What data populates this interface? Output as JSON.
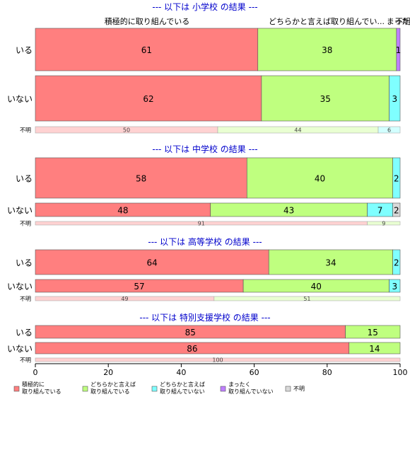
{
  "top_labels": [
    "積極的に取り組んでいる",
    "どちらかと言えば取り組んでい...",
    "まった",
    "不明"
  ],
  "colors": {
    "積極的に取り組んでいる": "#ff7f7f",
    "どちらかと言えば取り組んでいる": "#bfff7f",
    "どちらかと言えば取り組んでいない": "#7fffff",
    "まったく取り組んでいない": "#bf7fff",
    "不明": "#d9d9d9",
    "title": "#0000cc"
  },
  "chart_data": {
    "type": "bar",
    "orientation": "horizontal",
    "stacked": true,
    "xlim": [
      0,
      100
    ],
    "x_ticks": [
      "0",
      "20",
      "40",
      "60",
      "80",
      "100"
    ],
    "legend": {
      "placement": "bottom",
      "entries": [
        {
          "key": "積極的に取り組んでいる",
          "lines": [
            "積極的に",
            "取り組んでいる"
          ]
        },
        {
          "key": "どちらかと言えば取り組んでいる",
          "lines": [
            "どちらかと言えば",
            "取り組んでいる"
          ]
        },
        {
          "key": "どちらかと言えば取り組んでいない",
          "lines": [
            "どちらかと言えば",
            "取り組んでいない"
          ]
        },
        {
          "key": "まったく取り組んでいない",
          "lines": [
            "まったく",
            "取り組んでいない"
          ]
        },
        {
          "key": "不明",
          "lines": [
            "不明"
          ]
        }
      ]
    },
    "groups": [
      {
        "title": "--- 以下は 小学校 の結果 ---",
        "rows": [
          {
            "label": "いる",
            "values": [
              61,
              38,
              0,
              1,
              0
            ],
            "value_labels": [
              "61",
              "38",
              "",
              "1",
              ""
            ]
          },
          {
            "label": "いない",
            "values": [
              62,
              35,
              3,
              0,
              0
            ],
            "value_labels": [
              "62",
              "35",
              "3",
              "",
              ""
            ]
          },
          {
            "label": "不明",
            "values": [
              50,
              44,
              6,
              0,
              0
            ],
            "value_labels": [
              "50",
              "44",
              "6",
              "",
              ""
            ]
          }
        ]
      },
      {
        "title": "--- 以下は 中学校 の結果 ---",
        "rows": [
          {
            "label": "いる",
            "values": [
              58,
              40,
              2,
              0,
              0
            ],
            "value_labels": [
              "58",
              "40",
              "2",
              "",
              ""
            ]
          },
          {
            "label": "いない",
            "values": [
              48,
              43,
              7,
              0,
              2
            ],
            "value_labels": [
              "48",
              "43",
              "7",
              "",
              "2"
            ]
          },
          {
            "label": "不明",
            "values": [
              91,
              9,
              0,
              0,
              0
            ],
            "value_labels": [
              "91",
              "9",
              "",
              "",
              ""
            ]
          }
        ]
      },
      {
        "title": "--- 以下は 高等学校 の結果 ---",
        "rows": [
          {
            "label": "いる",
            "values": [
              64,
              34,
              2,
              0,
              0
            ],
            "value_labels": [
              "64",
              "34",
              "2",
              "",
              ""
            ]
          },
          {
            "label": "いない",
            "values": [
              57,
              40,
              3,
              0,
              0
            ],
            "value_labels": [
              "57",
              "40",
              "3",
              "",
              ""
            ]
          },
          {
            "label": "不明",
            "values": [
              49,
              51,
              0,
              0,
              0
            ],
            "value_labels": [
              "49",
              "51",
              "",
              "",
              ""
            ]
          }
        ]
      },
      {
        "title": "--- 以下は 特別支援学校 の結果 ---",
        "rows": [
          {
            "label": "いる",
            "values": [
              85,
              15,
              0,
              0,
              0
            ],
            "value_labels": [
              "85",
              "15",
              "",
              "",
              ""
            ]
          },
          {
            "label": "いない",
            "values": [
              86,
              14,
              0,
              0,
              0
            ],
            "value_labels": [
              "86",
              "14",
              "",
              "",
              ""
            ]
          },
          {
            "label": "不明",
            "values": [
              100,
              0,
              0,
              0,
              0
            ],
            "value_labels": [
              "100",
              "",
              "",
              "",
              ""
            ]
          }
        ]
      }
    ]
  }
}
